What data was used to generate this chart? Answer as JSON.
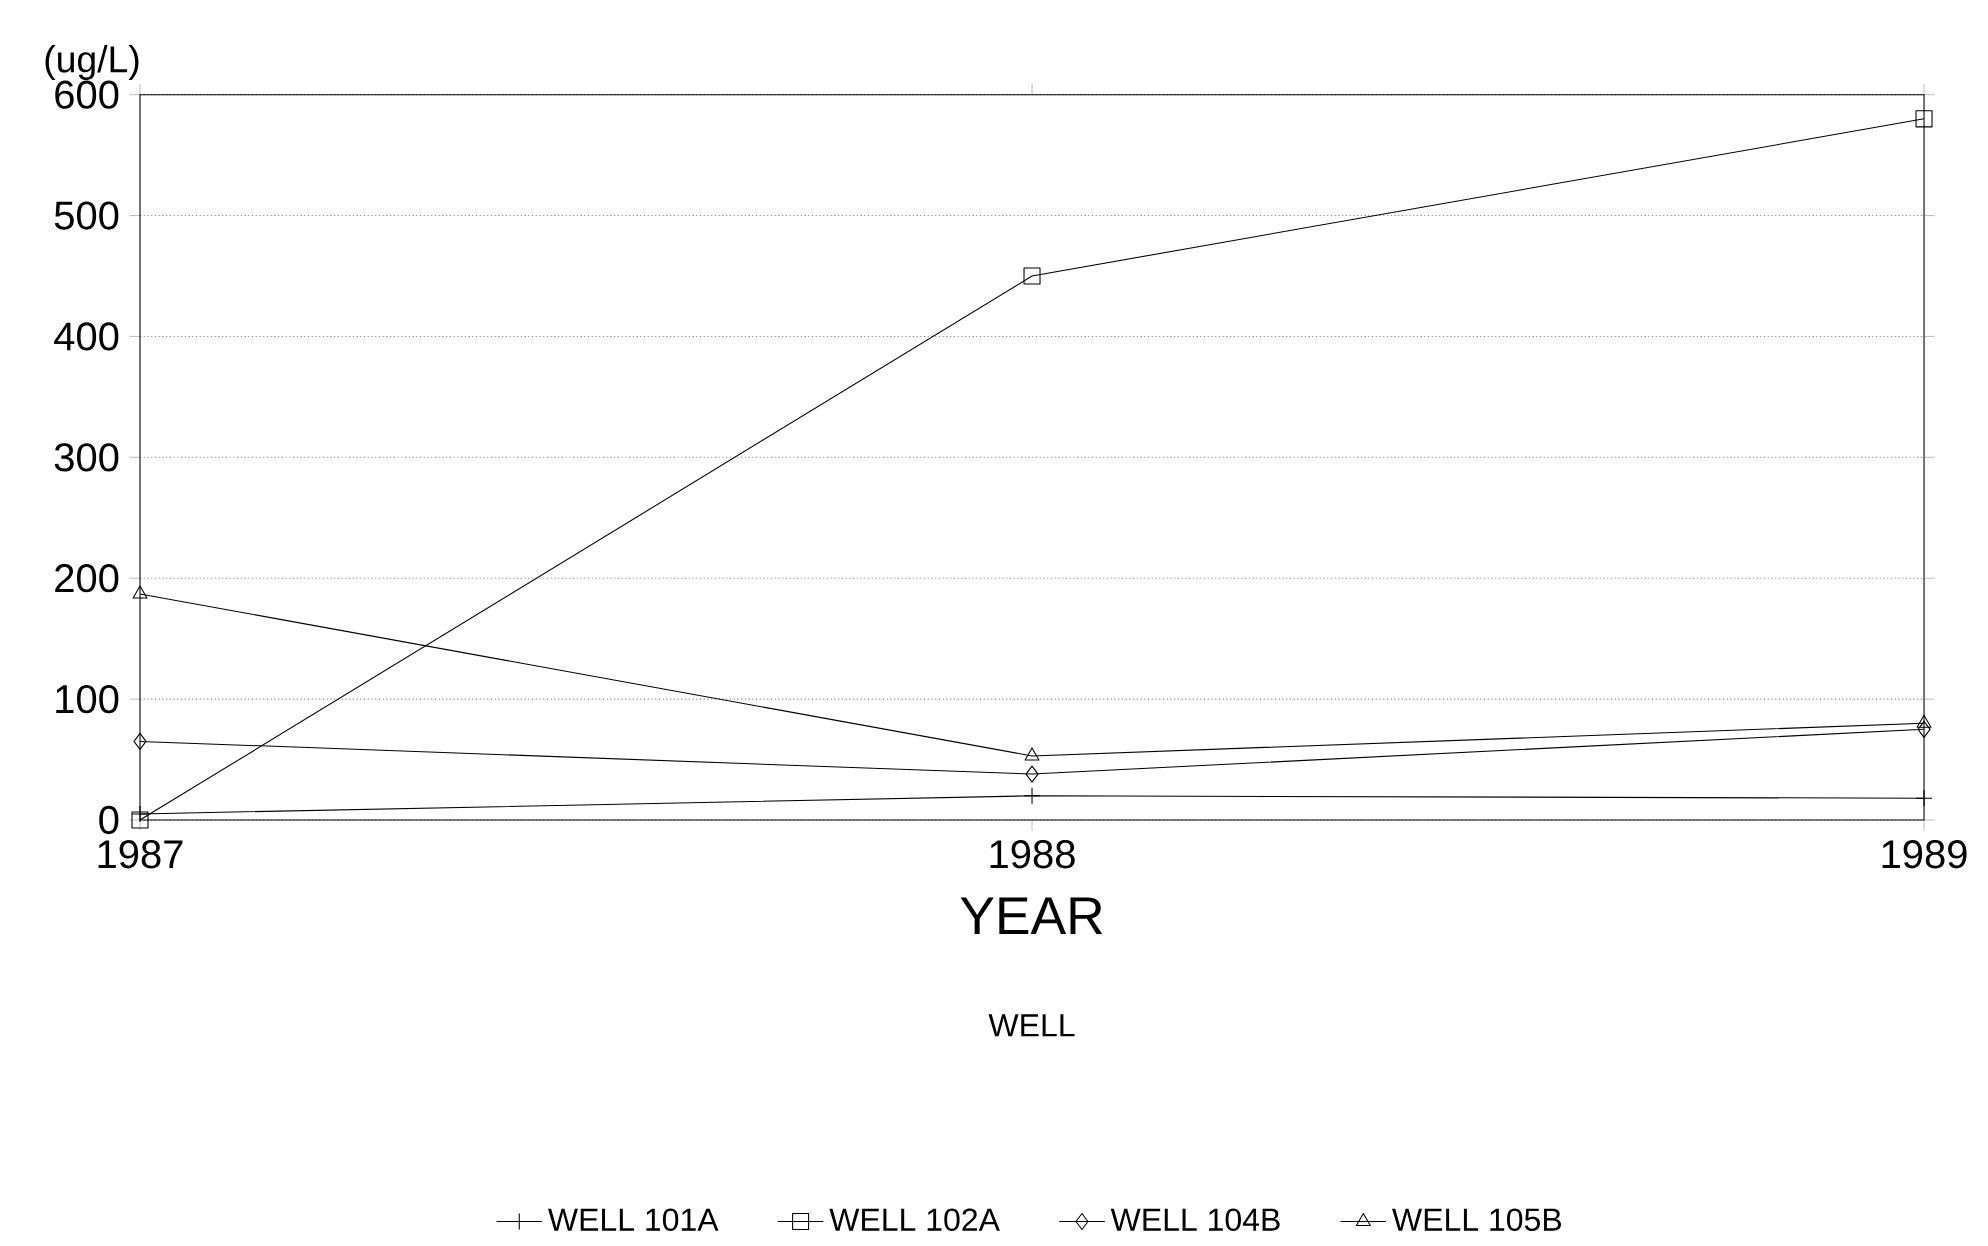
{
  "chart_data": {
    "type": "line",
    "xlabel": "YEAR",
    "ylabel": "(ug/L)",
    "legend_title": "WELL",
    "x": [
      1987,
      1988,
      1989
    ],
    "xlim": [
      1987,
      1989
    ],
    "xticks": [
      1987,
      1988,
      1989
    ],
    "ylim": [
      0,
      600
    ],
    "yticks": [
      0,
      100,
      200,
      300,
      400,
      500,
      600
    ],
    "grid": "y",
    "legend": "bottom",
    "series": [
      {
        "name": "WELL 101A",
        "color": "#000000",
        "marker": "cross",
        "values": [
          5,
          20,
          18
        ]
      },
      {
        "name": "WELL 102A",
        "color": "#000000",
        "marker": "square",
        "values": [
          0,
          450,
          580
        ]
      },
      {
        "name": "WELL 104B",
        "color": "#000000",
        "marker": "diamond",
        "values": [
          65,
          38,
          75
        ]
      },
      {
        "name": "WELL 105B",
        "color": "#000000",
        "marker": "triangle",
        "values": [
          187,
          53,
          80
        ]
      }
    ]
  }
}
